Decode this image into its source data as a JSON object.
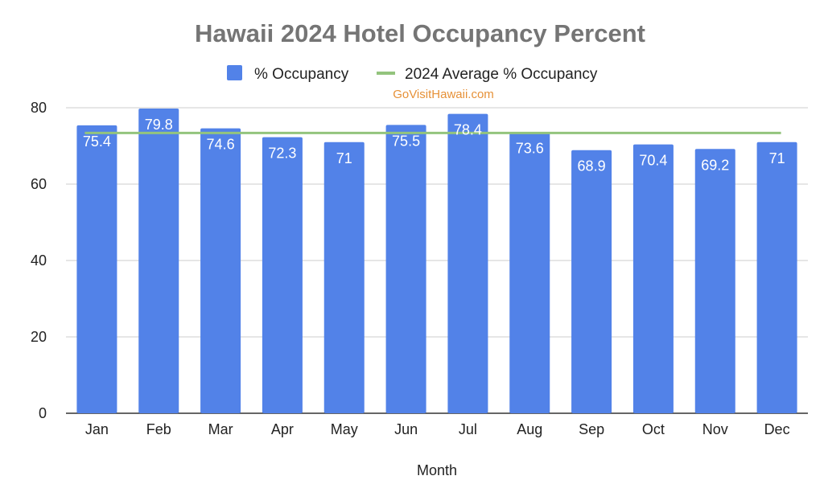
{
  "chart_data": {
    "type": "bar",
    "title": "Hawaii 2024 Hotel Occupancy Percent",
    "watermark": "GoVisitHawaii.com",
    "xlabel": "Month",
    "ylabel": "",
    "ylim": [
      0,
      80
    ],
    "yticks": [
      "0",
      "20",
      "40",
      "60",
      "80"
    ],
    "categories": [
      "Jan",
      "Feb",
      "Mar",
      "Apr",
      "May",
      "Jun",
      "Jul",
      "Aug",
      "Sep",
      "Oct",
      "Nov",
      "Dec"
    ],
    "series": [
      {
        "name": "% Occupancy",
        "type": "bar",
        "values": [
          75.4,
          79.8,
          74.6,
          72.3,
          71,
          75.5,
          78.4,
          73.6,
          68.9,
          70.4,
          69.2,
          71
        ],
        "labels": [
          "75.4",
          "79.8",
          "74.6",
          "72.3",
          "71",
          "75.5",
          "78.4",
          "73.6",
          "68.9",
          "70.4",
          "69.2",
          "71"
        ],
        "color": "#5282e8"
      },
      {
        "name": "2024 Average % Occupancy",
        "type": "line",
        "value": 73.4,
        "color": "#93c47d"
      }
    ],
    "legend_position": "top",
    "grid": true,
    "colors": {
      "title": "#757575",
      "watermark": "#e69138",
      "grid": "#cccccc",
      "axis": "#333333"
    }
  }
}
